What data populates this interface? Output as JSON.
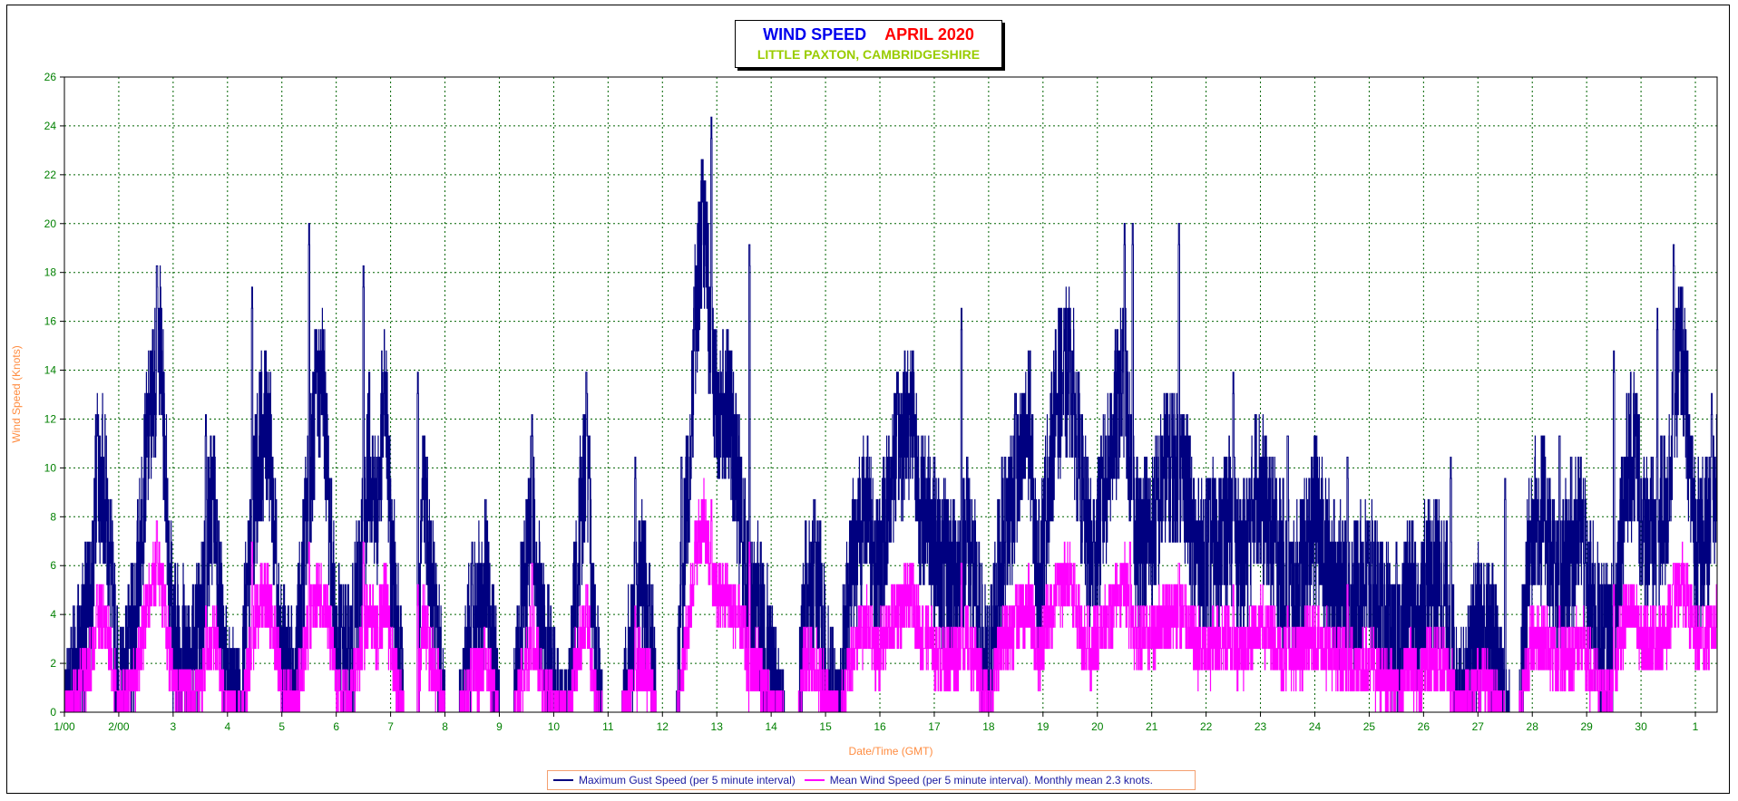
{
  "colors": {
    "gust": "#000080",
    "mean": "#ff00ff",
    "title_main": "#0000ee",
    "title_month": "#ff0000",
    "subtitle": "#99cc00",
    "axis_text": "#008000",
    "axis_label": "#ff8c40",
    "grid": "#006400"
  },
  "title": {
    "main": "WIND SPEED",
    "month": "APRIL 2020",
    "subtitle": "LITTLE PAXTON, CAMBRIDGESHIRE"
  },
  "legend": {
    "gust": "Maximum Gust Speed (per 5 minute interval)",
    "mean": "Mean Wind Speed (per 5 minute interval). Monthly mean 2.3 knots."
  },
  "chart_data": {
    "type": "line",
    "title": "WIND SPEED APRIL 2020",
    "subtitle": "LITTLE PAXTON, CAMBRIDGESHIRE",
    "xlabel": "Date/Time (GMT)",
    "ylabel": "Wind Speed (Knots)",
    "ylim": [
      0,
      26
    ],
    "xlim": [
      0,
      30.4
    ],
    "grid": true,
    "legend_position": "bottom",
    "y_ticks": [
      "0",
      "2",
      "4",
      "6",
      "8",
      "10",
      "12",
      "14",
      "16",
      "18",
      "20",
      "22",
      "24",
      "26"
    ],
    "x_tick_labels": [
      "1/00",
      "2/00",
      "3",
      "4",
      "5",
      "6",
      "7",
      "8",
      "9",
      "10",
      "11",
      "12",
      "13",
      "14",
      "15",
      "16",
      "17",
      "18",
      "19",
      "20",
      "21",
      "22",
      "23",
      "24",
      "25",
      "26",
      "27",
      "28",
      "29",
      "30",
      "1"
    ],
    "series": [
      {
        "name": "Maximum Gust Speed (per 5 minute interval)",
        "x": [
          0.0,
          0.25,
          0.5,
          0.6,
          0.75,
          0.9,
          1.0,
          1.25,
          1.5,
          1.6,
          1.75,
          1.9,
          2.0,
          2.25,
          2.5,
          2.6,
          2.75,
          2.9,
          3.0,
          3.25,
          3.5,
          3.6,
          3.75,
          3.9,
          4.0,
          4.25,
          4.5,
          4.6,
          4.75,
          4.9,
          5.0,
          5.25,
          5.5,
          5.6,
          5.75,
          5.9,
          6.0,
          6.25,
          6.5,
          6.6,
          6.75,
          6.9,
          7.0,
          7.25,
          7.5,
          7.6,
          7.75,
          7.9,
          8.0,
          8.25,
          8.5,
          8.6,
          8.75,
          8.9,
          9.0,
          9.25,
          9.5,
          9.6,
          9.75,
          9.9,
          10.0,
          10.25,
          10.5,
          10.6,
          10.75,
          10.9,
          11.0,
          11.25,
          11.5,
          11.6,
          11.75,
          11.9,
          12.0,
          12.25,
          12.5,
          12.6,
          12.75,
          12.9,
          13.0,
          13.25,
          13.5,
          13.6,
          13.75,
          13.9,
          14.0,
          14.25,
          14.5,
          14.6,
          14.75,
          14.9,
          15.0,
          15.25,
          15.5,
          15.6,
          15.75,
          15.9,
          16.0,
          16.25,
          16.5,
          16.6,
          16.75,
          16.9,
          17.0,
          17.25,
          17.5,
          17.6,
          17.75,
          17.9,
          18.0,
          18.25,
          18.5,
          18.6,
          18.75,
          18.9,
          19.0,
          19.25,
          19.5,
          19.6,
          19.75,
          19.9,
          20.0,
          20.25,
          20.5,
          20.6,
          20.75,
          20.9,
          21.0,
          21.25,
          21.5,
          21.6,
          21.75,
          21.9,
          22.0,
          22.25,
          22.5,
          22.6,
          22.75,
          22.9,
          23.0,
          23.25,
          23.5,
          23.6,
          23.75,
          23.9,
          24.0,
          24.25,
          24.5,
          24.6,
          24.75,
          24.9,
          25.0,
          25.25,
          25.5,
          25.6,
          25.75,
          25.9,
          26.0,
          26.25,
          26.5,
          26.6,
          26.75,
          26.9,
          27.0,
          27.25,
          27.5,
          27.6,
          27.75,
          27.9,
          28.0,
          28.25,
          28.5,
          28.6,
          28.75,
          28.9,
          29.0,
          29.25,
          29.5,
          29.6,
          29.75,
          29.9,
          30.0,
          30.25,
          30.4
        ],
        "values": [
          0.0,
          2.5,
          4.5,
          10.0,
          9.0,
          4.0,
          1.0,
          2.5,
          10.5,
          12.5,
          15.5,
          8.0,
          3.0,
          2.5,
          3.0,
          6.5,
          9.0,
          3.0,
          1.0,
          0.5,
          9.0,
          11.0,
          12.0,
          6.0,
          2.0,
          1.0,
          9.5,
          12.0,
          14.0,
          7.0,
          3.0,
          2.0,
          7.0,
          11.0,
          8.0,
          13.5,
          7.0,
          0.0,
          0.0,
          10.0,
          5.5,
          2.0,
          0.0,
          0.0,
          3.5,
          4.0,
          5.5,
          2.0,
          0.0,
          0.0,
          5.5,
          9.0,
          4.0,
          2.0,
          1.0,
          0.0,
          8.0,
          11.0,
          3.0,
          0.0,
          0.0,
          0.0,
          3.5,
          5.5,
          4.0,
          0.0,
          0.0,
          0.0,
          10.5,
          16.0,
          20.5,
          14.0,
          12.5,
          12.0,
          7.0,
          4.0,
          4.5,
          3.0,
          1.5,
          0.0,
          0.0,
          4.5,
          5.5,
          4.5,
          2.0,
          0.0,
          6.5,
          7.0,
          9.0,
          6.0,
          6.0,
          10.5,
          12.0,
          12.5,
          8.0,
          8.5,
          7.0,
          5.5,
          6.0,
          8.0,
          5.0,
          2.0,
          1.5,
          7.0,
          9.5,
          10.0,
          12.0,
          5.0,
          7.0,
          13.0,
          14.0,
          12.0,
          8.0,
          6.0,
          7.0,
          11.0,
          14.0,
          10.0,
          7.0,
          7.5,
          7.0,
          10.0,
          10.0,
          10.0,
          7.0,
          6.0,
          6.5,
          7.0,
          8.0,
          6.0,
          6.5,
          9.5,
          9.0,
          7.0,
          5.5,
          4.5,
          6.0,
          7.0,
          8.0,
          6.0,
          5.0,
          4.5,
          5.0,
          5.5,
          5.5,
          4.0,
          2.0,
          3.0,
          5.5,
          3.0,
          5.5,
          5.5,
          4.0,
          1.0,
          1.0,
          2.0,
          3.5,
          3.0,
          0.5,
          0.0,
          0.0,
          5.0,
          8.0,
          8.0,
          4.0,
          6.0,
          7.0,
          8.0,
          5.0,
          3.0,
          2.5,
          7.0,
          10.0,
          11.0,
          8.0,
          7.0,
          9.0,
          13.0,
          15.0,
          10.0,
          7.0,
          7.0,
          9.5
        ],
        "peaks": [
          [
            0.6,
            12.1
          ],
          [
            1.7,
            18.2
          ],
          [
            2.6,
            12.1
          ],
          [
            3.45,
            17.3
          ],
          [
            4.5,
            19.9
          ],
          [
            5.5,
            18.2
          ],
          [
            6.5,
            13.9
          ],
          [
            7.5,
            6.9
          ],
          [
            8.6,
            12.1
          ],
          [
            9.6,
            13.9
          ],
          [
            10.5,
            10.4
          ],
          [
            11.35,
            10.4
          ],
          [
            11.9,
            24.3
          ],
          [
            12.6,
            19.1
          ],
          [
            13.8,
            6.9
          ],
          [
            14.6,
            6.9
          ],
          [
            15.5,
            10.4
          ],
          [
            16.5,
            16.4
          ],
          [
            17.5,
            13.0
          ],
          [
            18.5,
            14.7
          ],
          [
            19.5,
            19.9
          ],
          [
            19.65,
            19.9
          ],
          [
            20.5,
            19.9
          ],
          [
            21.5,
            13.9
          ],
          [
            22.5,
            11.3
          ],
          [
            23.6,
            10.4
          ],
          [
            24.5,
            6.9
          ],
          [
            25.5,
            10.4
          ],
          [
            26.5,
            9.5
          ],
          [
            27.5,
            11.3
          ],
          [
            28.5,
            14.7
          ],
          [
            29.3,
            16.4
          ],
          [
            29.6,
            19.1
          ],
          [
            30.3,
            12.9
          ]
        ]
      },
      {
        "name": "Mean Wind Speed (per 5 minute interval). Monthly mean 2.3 knots.",
        "x": [
          0.0,
          0.25,
          0.5,
          0.6,
          0.75,
          0.9,
          1.0,
          1.25,
          1.5,
          1.6,
          1.75,
          1.9,
          2.0,
          2.25,
          2.5,
          2.6,
          2.75,
          2.9,
          3.0,
          3.25,
          3.5,
          3.6,
          3.75,
          3.9,
          4.0,
          4.25,
          4.5,
          4.6,
          4.75,
          4.9,
          5.0,
          5.25,
          5.5,
          5.6,
          5.75,
          5.9,
          6.0,
          6.25,
          6.5,
          6.6,
          6.75,
          6.9,
          7.0,
          7.25,
          7.5,
          7.6,
          7.75,
          7.9,
          8.0,
          8.25,
          8.5,
          8.6,
          8.75,
          8.9,
          9.0,
          9.25,
          9.5,
          9.6,
          9.75,
          9.9,
          10.0,
          10.25,
          10.5,
          10.6,
          10.75,
          10.9,
          11.0,
          11.25,
          11.5,
          11.6,
          11.75,
          11.9,
          12.0,
          12.25,
          12.5,
          12.6,
          12.75,
          12.9,
          13.0,
          13.25,
          13.5,
          13.6,
          13.75,
          13.9,
          14.0,
          14.25,
          14.5,
          14.6,
          14.75,
          14.9,
          15.0,
          15.25,
          15.5,
          15.6,
          15.75,
          15.9,
          16.0,
          16.25,
          16.5,
          16.6,
          16.75,
          16.9,
          17.0,
          17.25,
          17.5,
          17.6,
          17.75,
          17.9,
          18.0,
          18.25,
          18.5,
          18.6,
          18.75,
          18.9,
          19.0,
          19.25,
          19.5,
          19.6,
          19.75,
          19.9,
          20.0,
          20.25,
          20.5,
          20.6,
          20.75,
          20.9,
          21.0,
          21.25,
          21.5,
          21.6,
          21.75,
          21.9,
          22.0,
          22.25,
          22.5,
          22.6,
          22.75,
          22.9,
          23.0,
          23.25,
          23.5,
          23.6,
          23.75,
          23.9,
          24.0,
          24.25,
          24.5,
          24.6,
          24.75,
          24.9,
          25.0,
          25.25,
          25.5,
          25.6,
          25.75,
          25.9,
          26.0,
          26.25,
          26.5,
          26.6,
          26.75,
          26.9,
          27.0,
          27.25,
          27.5,
          27.6,
          27.75,
          27.9,
          28.0,
          28.25,
          28.5,
          28.6,
          28.75,
          28.9,
          29.0,
          29.25,
          29.5,
          29.6,
          29.75,
          29.9,
          30.0,
          30.25,
          30.4
        ],
        "values": [
          0.0,
          1.0,
          2.0,
          4.0,
          3.5,
          1.5,
          0.5,
          1.0,
          4.0,
          5.0,
          6.0,
          3.0,
          1.0,
          1.0,
          1.0,
          2.5,
          3.5,
          1.0,
          0.5,
          0.0,
          3.5,
          4.5,
          4.5,
          2.5,
          1.0,
          0.5,
          3.5,
          4.5,
          5.0,
          3.0,
          1.0,
          0.5,
          3.0,
          4.5,
          3.0,
          5.0,
          2.5,
          0.0,
          0.0,
          4.0,
          2.0,
          1.0,
          0.0,
          0.0,
          1.5,
          1.5,
          2.0,
          1.0,
          0.0,
          0.0,
          2.0,
          3.5,
          1.5,
          1.0,
          0.5,
          0.0,
          3.0,
          4.0,
          1.0,
          0.0,
          0.0,
          0.0,
          1.5,
          2.0,
          1.5,
          0.0,
          0.0,
          0.0,
          4.0,
          6.5,
          8.0,
          5.5,
          5.0,
          4.5,
          3.0,
          1.5,
          2.0,
          1.0,
          0.5,
          0.0,
          0.0,
          2.0,
          2.0,
          1.5,
          1.0,
          0.0,
          2.5,
          3.0,
          3.5,
          2.5,
          2.5,
          4.0,
          4.5,
          5.0,
          3.0,
          3.0,
          2.5,
          2.0,
          2.5,
          3.0,
          2.0,
          1.0,
          0.5,
          3.0,
          3.5,
          4.0,
          4.5,
          2.0,
          3.0,
          5.0,
          5.5,
          4.5,
          3.0,
          2.5,
          3.0,
          4.0,
          5.5,
          4.0,
          3.0,
          3.0,
          3.0,
          4.0,
          4.0,
          4.0,
          3.0,
          2.5,
          2.5,
          3.0,
          3.0,
          2.5,
          2.5,
          3.5,
          3.5,
          3.0,
          2.0,
          2.0,
          2.5,
          3.0,
          3.0,
          2.5,
          2.0,
          2.0,
          2.0,
          2.0,
          2.0,
          1.5,
          1.0,
          1.0,
          2.0,
          1.0,
          2.0,
          2.0,
          1.5,
          0.5,
          0.5,
          1.0,
          1.5,
          1.0,
          0.0,
          0.0,
          0.0,
          2.0,
          3.0,
          3.0,
          1.5,
          2.5,
          2.5,
          3.0,
          2.0,
          1.0,
          1.0,
          3.0,
          4.0,
          4.0,
          3.0,
          3.0,
          3.5,
          4.5,
          5.5,
          4.0,
          3.0,
          3.0,
          4.0
        ],
        "peaks": [
          [
            0.6,
            5.2
          ],
          [
            1.7,
            7.8
          ],
          [
            2.6,
            4.3
          ],
          [
            3.45,
            6.9
          ],
          [
            4.5,
            6.9
          ],
          [
            5.5,
            6.9
          ],
          [
            6.5,
            5.2
          ],
          [
            7.5,
            2.6
          ],
          [
            8.6,
            6.1
          ],
          [
            9.6,
            5.2
          ],
          [
            10.5,
            4.3
          ],
          [
            11.9,
            8.6
          ],
          [
            12.6,
            6.9
          ],
          [
            16.5,
            6.1
          ],
          [
            17.5,
            5.2
          ],
          [
            18.5,
            5.2
          ],
          [
            19.6,
            6.9
          ],
          [
            20.5,
            6.1
          ],
          [
            21.5,
            5.2
          ],
          [
            22.5,
            4.3
          ],
          [
            23.6,
            5.2
          ],
          [
            27.5,
            4.3
          ],
          [
            28.5,
            5.2
          ],
          [
            29.6,
            6.1
          ]
        ]
      }
    ]
  }
}
